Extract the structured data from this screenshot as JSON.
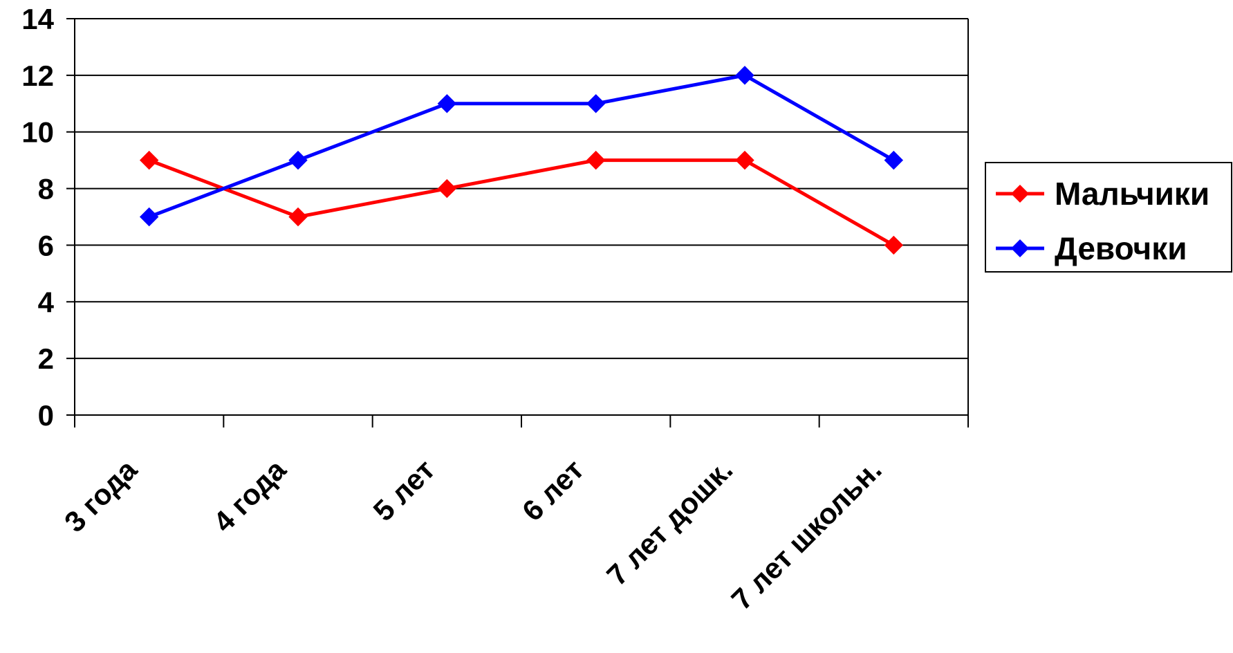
{
  "chart_data": {
    "type": "line",
    "title": "",
    "xlabel": "",
    "ylabel": "",
    "categories": [
      "3 года",
      "4 года",
      "5 лет",
      "6 лет",
      "7 лет дошк.",
      "7 лет школьн."
    ],
    "ylim": [
      0,
      14
    ],
    "yticks": [
      0,
      2,
      4,
      6,
      8,
      10,
      12,
      14
    ],
    "grid": true,
    "legend_position": "right",
    "series": [
      {
        "name": "Мальчики",
        "color": "#ff0000",
        "marker": "diamond",
        "values": [
          9,
          7,
          8,
          9,
          9,
          6
        ]
      },
      {
        "name": "Девочки",
        "color": "#0000ff",
        "marker": "diamond",
        "values": [
          7,
          9,
          11,
          11,
          12,
          9
        ]
      }
    ]
  }
}
